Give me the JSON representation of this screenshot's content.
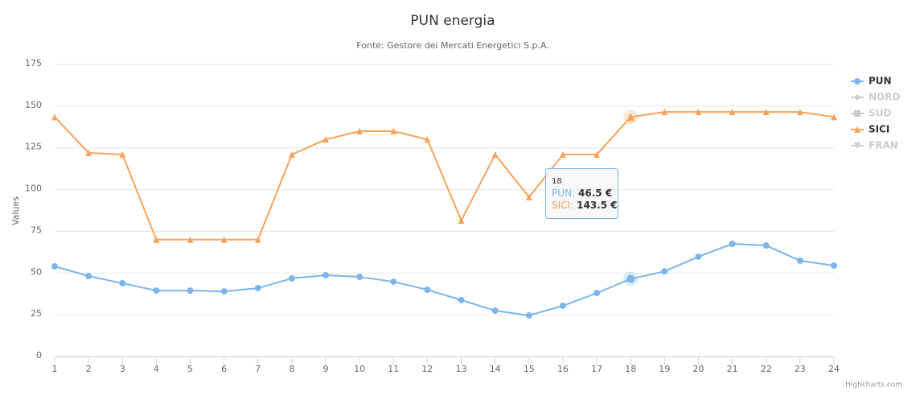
{
  "chart_data": {
    "type": "line",
    "title": "PUN energia",
    "subtitle": "Fonte: Gestore dei Mercati Energetici S.p.A.",
    "y_axis_label": "Values",
    "x": [
      1,
      2,
      3,
      4,
      5,
      6,
      7,
      8,
      9,
      10,
      11,
      12,
      13,
      14,
      15,
      16,
      17,
      18,
      19,
      20,
      21,
      22,
      23,
      24
    ],
    "xlim": [
      1,
      24
    ],
    "xticks": [
      1,
      2,
      3,
      4,
      5,
      6,
      7,
      8,
      9,
      10,
      11,
      12,
      13,
      14,
      15,
      16,
      17,
      18,
      19,
      20,
      21,
      22,
      23,
      24
    ],
    "ylim": [
      0,
      175
    ],
    "yticks": [
      0,
      25,
      50,
      75,
      100,
      125,
      150,
      175
    ],
    "grid": true,
    "legend": "right",
    "series": [
      {
        "name": "PUN",
        "color": "#7cb5ec",
        "marker": "circle",
        "visible": true,
        "values": [
          54,
          48.2,
          43.9,
          39.5,
          39.5,
          39,
          41,
          46.8,
          48.7,
          47.7,
          44.8,
          40,
          33.8,
          27.5,
          24.6,
          30.4,
          38,
          46.5,
          51,
          59.8,
          67.5,
          66.5,
          57.4,
          54.5
        ]
      },
      {
        "name": "NORD",
        "color": "#cccccc",
        "marker": "diamond",
        "visible": false
      },
      {
        "name": "SUD",
        "color": "#cccccc",
        "marker": "square",
        "visible": false
      },
      {
        "name": "SICI",
        "color": "#f7a35c",
        "marker": "triangle",
        "visible": true,
        "values": [
          143.5,
          122,
          121,
          70,
          70,
          70,
          70,
          121,
          130,
          135,
          135,
          130,
          81.5,
          121,
          95.5,
          121,
          121,
          143.5,
          146.5,
          146.5,
          146.5,
          146.5,
          146.5,
          143.5
        ]
      },
      {
        "name": "FRAN",
        "color": "#cccccc",
        "marker": "triangle-down",
        "visible": false
      }
    ],
    "tooltip": {
      "x": "18",
      "index": 17,
      "items": [
        {
          "series": 0,
          "name": "PUN:",
          "label": "46.5 €"
        },
        {
          "series": 3,
          "name": "SICI:",
          "label": "143.5 €"
        }
      ]
    },
    "credits": "Highcharts.com"
  }
}
